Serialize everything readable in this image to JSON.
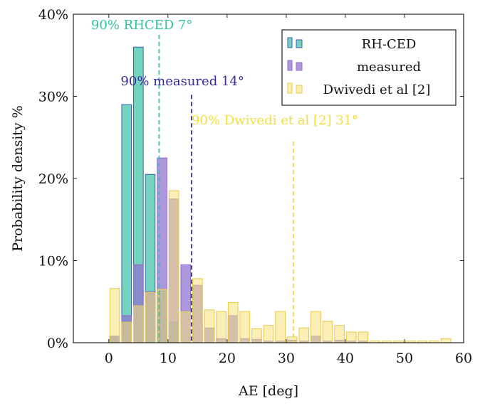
{
  "chart_data": {
    "type": "bar",
    "title": "",
    "xlabel": "AE [deg]",
    "ylabel": "Probability density %",
    "xlim": [
      -6,
      60
    ],
    "ylim": [
      0,
      40
    ],
    "x_ticks": [
      0,
      10,
      20,
      30,
      40,
      50,
      60
    ],
    "y_ticks": [
      0,
      10,
      20,
      30,
      40
    ],
    "x_tick_labels": [
      "0",
      "10",
      "20",
      "30",
      "40",
      "50",
      "60"
    ],
    "y_tick_labels": [
      "0%",
      "10%",
      "20%",
      "30%",
      "40%"
    ],
    "bin_width": 2,
    "grid": false,
    "legend_position": "top-right",
    "series": [
      {
        "name": "RH-CED",
        "fill": "#3ec2a5",
        "stroke": "#3f5fb0",
        "x": [
          1,
          3,
          5,
          7,
          9,
          11
        ],
        "values": [
          0.8,
          29,
          36,
          20.5,
          6.3,
          2.5
        ]
      },
      {
        "name": "measured",
        "fill": "#8f6fd0",
        "stroke": "#8f6fd0",
        "x": [
          1,
          3,
          5,
          7,
          9,
          11,
          13,
          15,
          17,
          19,
          21,
          23,
          25,
          27,
          29,
          31,
          33,
          35,
          37,
          39,
          41,
          43
        ],
        "values": [
          0.8,
          3.3,
          9.5,
          6.2,
          22.5,
          17.5,
          9.5,
          7.0,
          1.8,
          0.5,
          3.3,
          0.5,
          0.4,
          0.2,
          0.2,
          0.3,
          0.2,
          0.8,
          0.2,
          0.3,
          0.2,
          0.2
        ]
      },
      {
        "name": "Dwivedi et al [2]",
        "fill": "#f7e27a",
        "stroke": "#e8c84a",
        "x": [
          1,
          3,
          5,
          7,
          9,
          11,
          13,
          15,
          17,
          19,
          21,
          23,
          25,
          27,
          29,
          31,
          33,
          35,
          37,
          39,
          41,
          43,
          45,
          47,
          49,
          51,
          53,
          55,
          57
        ],
        "values": [
          6.6,
          2.5,
          4.5,
          6.1,
          6.5,
          18.5,
          3.8,
          7.8,
          4.0,
          3.8,
          4.9,
          3.8,
          1.7,
          2.1,
          3.8,
          0.7,
          1.8,
          3.8,
          2.6,
          2.1,
          1.3,
          1.3,
          0.2,
          0.2,
          0.2,
          0.2,
          0.2,
          0.2,
          0.5
        ]
      }
    ],
    "annotations": [
      {
        "text": "90% RHCED 7°",
        "x": 8.5,
        "color": "#2ec4a0"
      },
      {
        "text": "90% measured 14°",
        "x": 14,
        "color": "#3b2a9a"
      },
      {
        "text": "90% Dwivedi et al [2] 31°",
        "x": 31.2,
        "color": "#f2df3a"
      }
    ]
  }
}
